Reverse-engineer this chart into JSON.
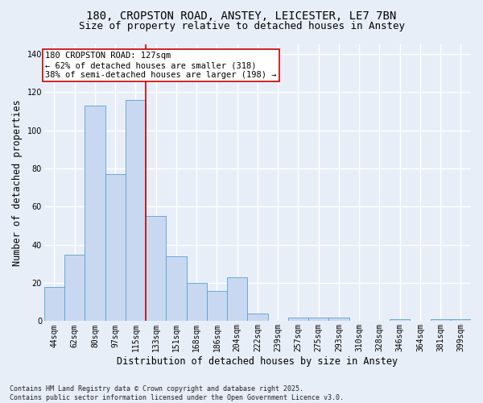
{
  "title_line1": "180, CROPSTON ROAD, ANSTEY, LEICESTER, LE7 7BN",
  "title_line2": "Size of property relative to detached houses in Anstey",
  "xlabel": "Distribution of detached houses by size in Anstey",
  "ylabel": "Number of detached properties",
  "categories": [
    "44sqm",
    "62sqm",
    "80sqm",
    "97sqm",
    "115sqm",
    "133sqm",
    "151sqm",
    "168sqm",
    "186sqm",
    "204sqm",
    "222sqm",
    "239sqm",
    "257sqm",
    "275sqm",
    "293sqm",
    "310sqm",
    "328sqm",
    "346sqm",
    "364sqm",
    "381sqm",
    "399sqm"
  ],
  "values": [
    18,
    35,
    113,
    77,
    116,
    55,
    34,
    20,
    16,
    23,
    4,
    0,
    2,
    2,
    2,
    0,
    0,
    1,
    0,
    1,
    1
  ],
  "bar_color": "#c8d8f0",
  "bar_edge_color": "#5a9fd4",
  "reference_line_index": 4,
  "reference_line_color": "#cc0000",
  "annotation_text": "180 CROPSTON ROAD: 127sqm\n← 62% of detached houses are smaller (318)\n38% of semi-detached houses are larger (198) →",
  "annotation_box_color": "#ffffff",
  "annotation_box_edge_color": "#cc0000",
  "ylim": [
    0,
    145
  ],
  "yticks": [
    0,
    20,
    40,
    60,
    80,
    100,
    120,
    140
  ],
  "background_color": "#e8eef8",
  "grid_color": "#ffffff",
  "footer_text": "Contains HM Land Registry data © Crown copyright and database right 2025.\nContains public sector information licensed under the Open Government Licence v3.0.",
  "title_fontsize": 10,
  "subtitle_fontsize": 9,
  "axis_label_fontsize": 8.5,
  "tick_fontsize": 7,
  "annotation_fontsize": 7.5,
  "footer_fontsize": 6
}
